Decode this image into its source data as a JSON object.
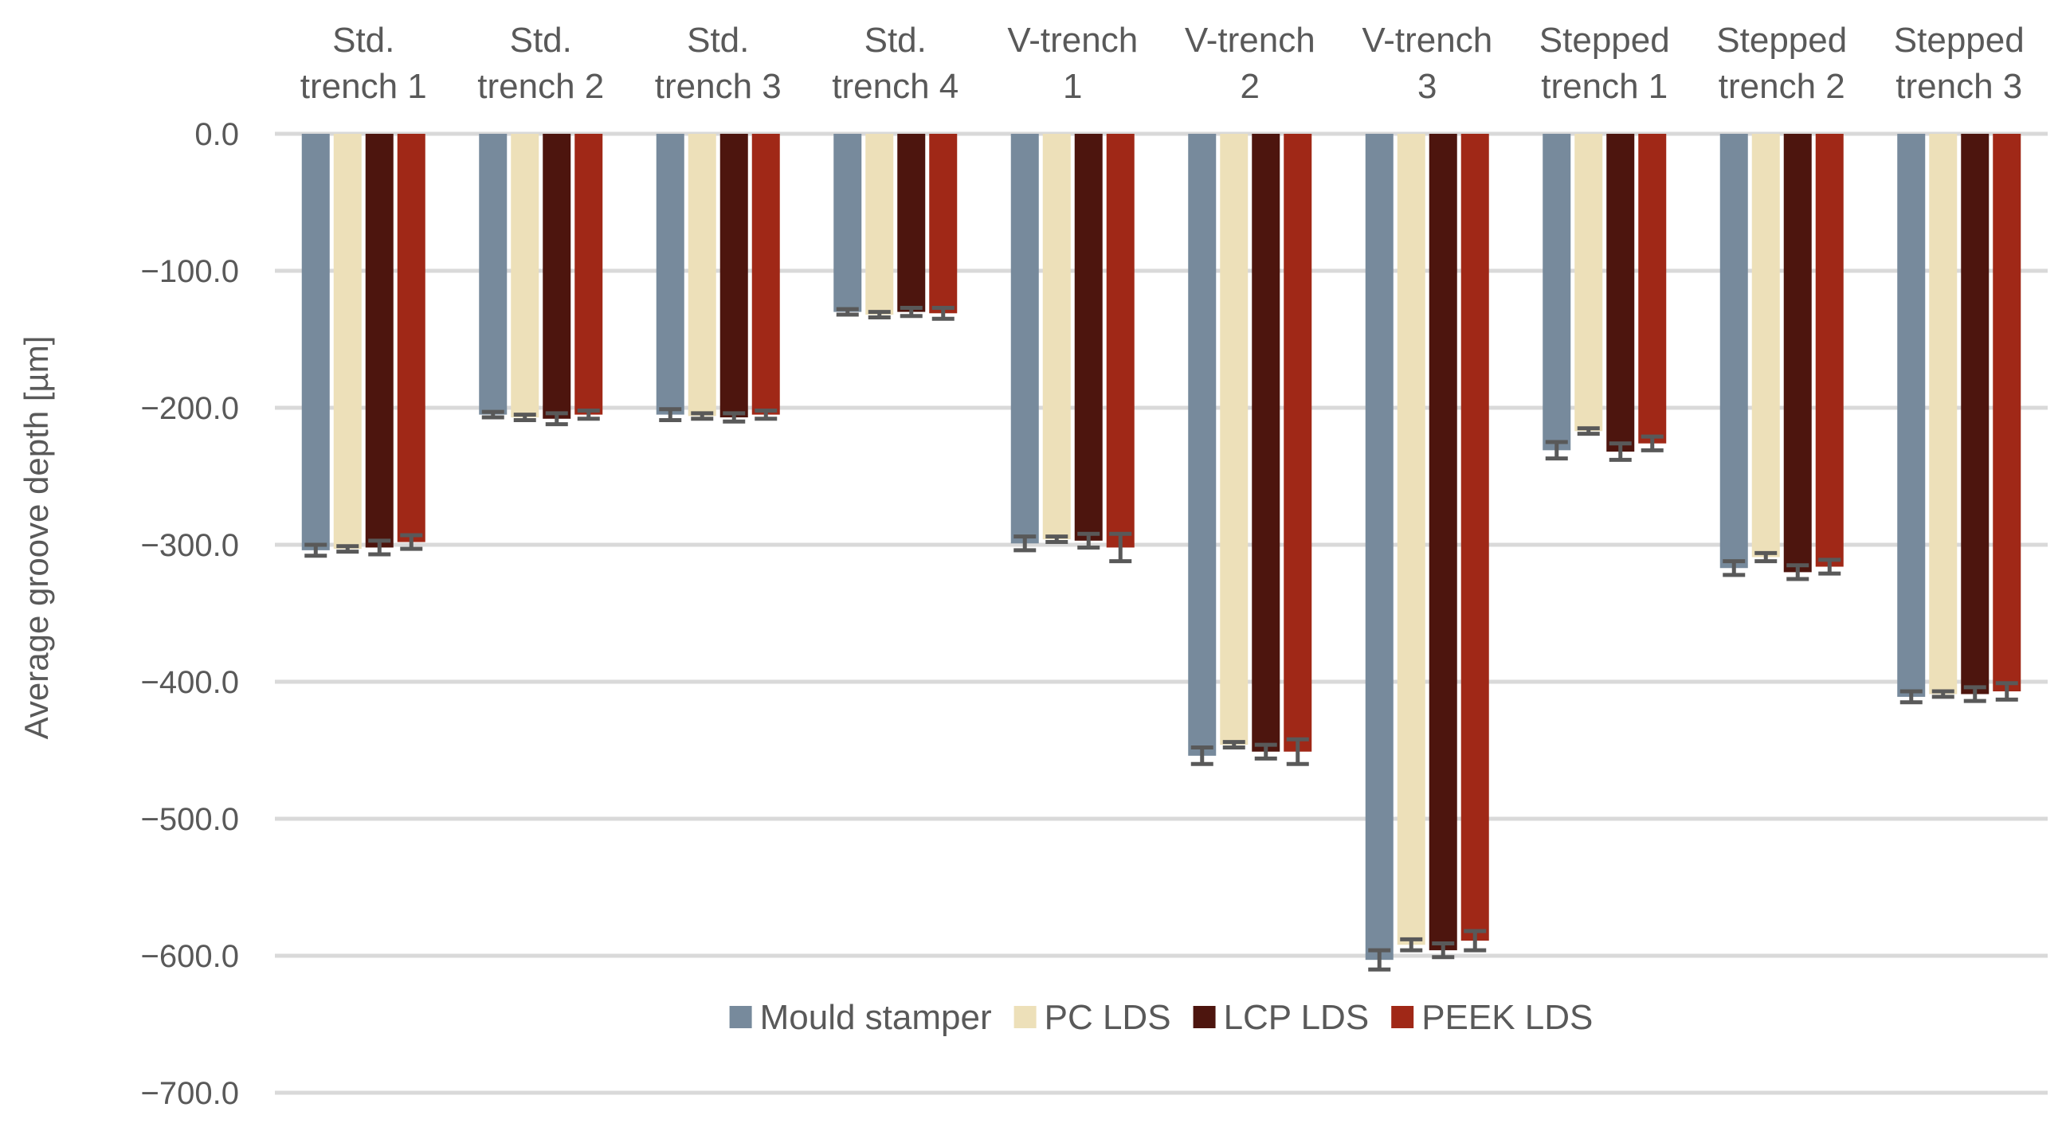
{
  "chart_data": {
    "type": "bar",
    "title": "",
    "xlabel": "",
    "ylabel": "Average groove depth [µm]",
    "ylim": [
      -700,
      0
    ],
    "yticks": [
      0,
      -100,
      -200,
      -300,
      -400,
      -500,
      -600,
      -700
    ],
    "ytick_labels": [
      "0.0",
      "−100.0",
      "−200.0",
      "−300.0",
      "−400.0",
      "−500.0",
      "−600.0",
      "−700.0"
    ],
    "grid": true,
    "legend_position": "bottom",
    "categories": [
      [
        "Std.",
        "trench 1"
      ],
      [
        "Std.",
        "trench 2"
      ],
      [
        "Std.",
        "trench 3"
      ],
      [
        "Std.",
        "trench 4"
      ],
      [
        "V-trench",
        "1"
      ],
      [
        "V-trench",
        "2"
      ],
      [
        "V-trench",
        "3"
      ],
      [
        "Stepped",
        "trench 1"
      ],
      [
        "Stepped",
        "trench 2"
      ],
      [
        "Stepped",
        "trench 3"
      ]
    ],
    "series": [
      {
        "name": "Mould stamper",
        "color": "#778a9c",
        "values": [
          -304,
          -205,
          -205,
          -130,
          -299,
          -454,
          -603,
          -231,
          -317,
          -411
        ],
        "errors": [
          4,
          2,
          4,
          2,
          5,
          6,
          7,
          6,
          5,
          4
        ]
      },
      {
        "name": "PC LDS",
        "color": "#ede0b9",
        "values": [
          -303,
          -207,
          -206,
          -132,
          -296,
          -446,
          -592,
          -217,
          -309,
          -409
        ],
        "errors": [
          2,
          2,
          2,
          2,
          2,
          2,
          4,
          2,
          3,
          2
        ]
      },
      {
        "name": "LCP LDS",
        "color": "#4d150e",
        "values": [
          -302,
          -208,
          -207,
          -130,
          -297,
          -451,
          -596,
          -232,
          -320,
          -409
        ],
        "errors": [
          5,
          4,
          3,
          3,
          5,
          5,
          5,
          6,
          5,
          5
        ]
      },
      {
        "name": "PEEK LDS",
        "color": "#a02817",
        "values": [
          -298,
          -205,
          -205,
          -131,
          -302,
          -451,
          -589,
          -226,
          -316,
          -407
        ],
        "errors": [
          5,
          3,
          3,
          4,
          10,
          9,
          7,
          5,
          5,
          6
        ]
      }
    ]
  }
}
